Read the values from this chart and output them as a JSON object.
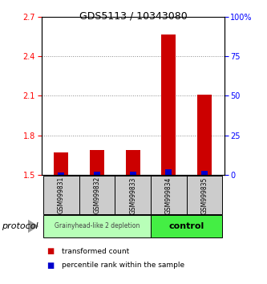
{
  "title": "GDS5113 / 10343080",
  "samples": [
    "GSM999831",
    "GSM999832",
    "GSM999833",
    "GSM999834",
    "GSM999835"
  ],
  "red_values": [
    1.67,
    1.69,
    1.69,
    2.57,
    2.11
  ],
  "blue_values_pct": [
    1.5,
    2.0,
    2.0,
    3.5,
    2.5
  ],
  "ylim_left": [
    1.5,
    2.7
  ],
  "ylim_right": [
    0,
    100
  ],
  "yticks_left": [
    1.5,
    1.8,
    2.1,
    2.4,
    2.7
  ],
  "yticks_right": [
    0,
    25,
    50,
    75,
    100
  ],
  "ytick_labels_right": [
    "0",
    "25",
    "50",
    "75",
    "100%"
  ],
  "group1_label": "Grainyhead-like 2 depletion",
  "group2_label": "control",
  "group1_color": "#b8ffb8",
  "group2_color": "#44ee44",
  "protocol_label": "protocol",
  "bar_color_red": "#cc0000",
  "bar_color_blue": "#0000cc",
  "bar_width": 0.4,
  "blue_bar_width": 0.18,
  "legend_red": "transformed count",
  "legend_blue": "percentile rank within the sample",
  "sample_bg_color": "#cccccc",
  "dotted_line_color": "#888888",
  "baseline": 1.5,
  "title_fontsize": 9,
  "tick_fontsize": 7,
  "sample_fontsize": 5.5,
  "legend_fontsize": 6.5,
  "proto_fontsize": 8
}
